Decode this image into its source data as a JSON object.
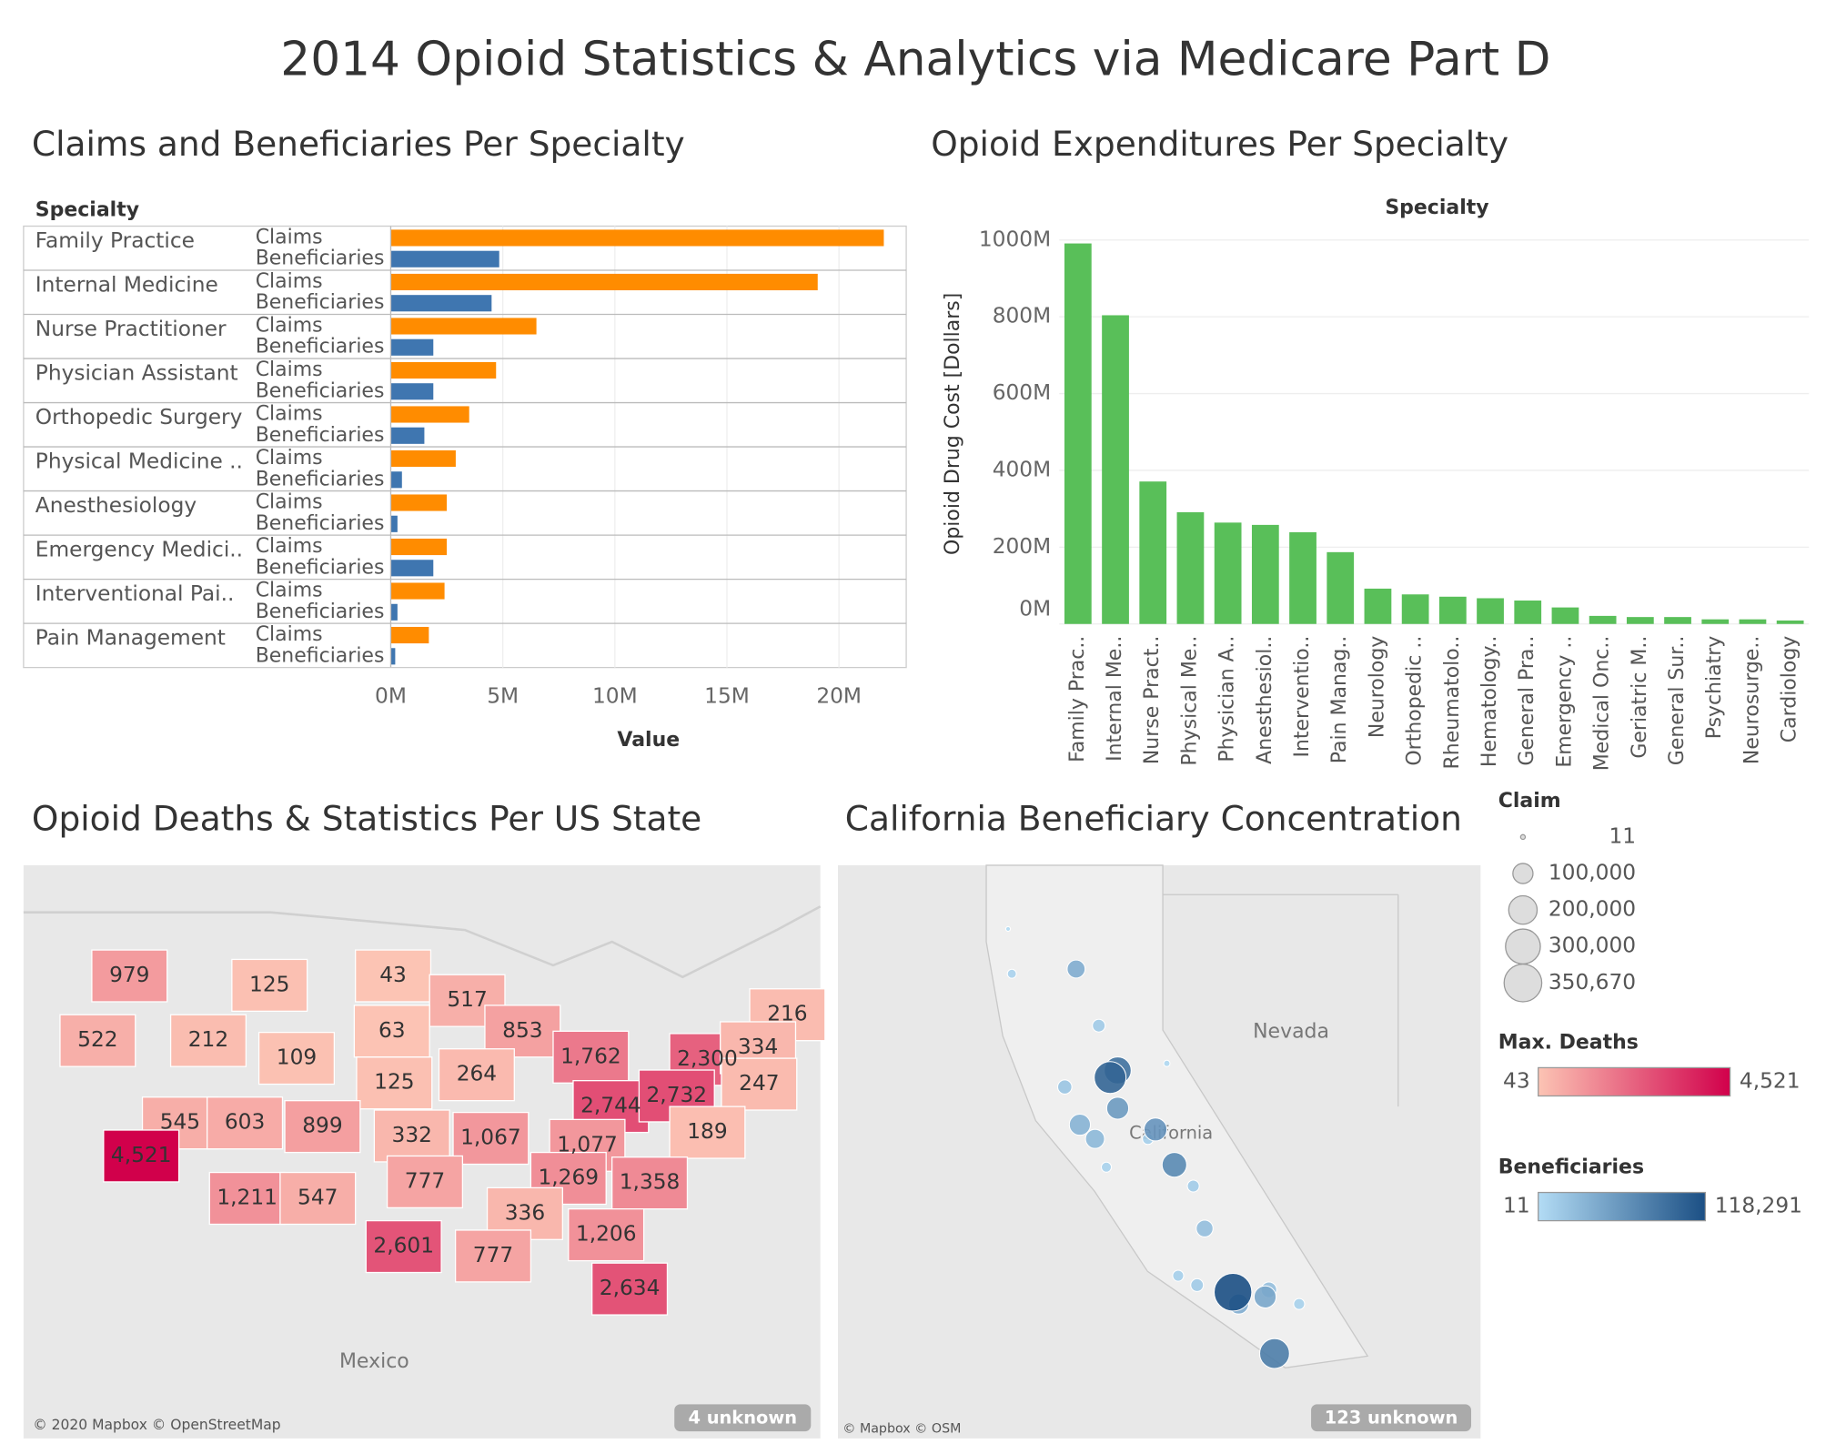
{
  "title": "2014 Opioid Statistics & Analytics via Medicare Part D",
  "chart_data": [
    {
      "type": "hbar_grouped",
      "title": "Claims and Beneficiaries Per Specialty",
      "row_header": "Specialty",
      "categories": [
        "Family Practice",
        "Internal Medicine",
        "Nurse Practitioner",
        "Physician Assistant",
        "Orthopedic Surgery",
        "Physical Medicine ..",
        "Anesthesiology",
        "Emergency Medici..",
        "Interventional Pai..",
        "Pain Management"
      ],
      "series": [
        {
          "name": "Claims",
          "color": "#ff8c00",
          "values": [
            22000000,
            19050000,
            6500000,
            4700000,
            3500000,
            2900000,
            2500000,
            2500000,
            2400000,
            1700000
          ]
        },
        {
          "name": "Beneficiaries",
          "color": "#3f76b0",
          "values": [
            4840000,
            4500000,
            1900000,
            1900000,
            1500000,
            500000,
            300000,
            1900000,
            300000,
            200000
          ]
        }
      ],
      "x_label": "Value",
      "xlim": [
        0,
        23000000
      ],
      "xticks": [
        {
          "value": 0,
          "label": "0M"
        },
        {
          "value": 5000000,
          "label": "5M"
        },
        {
          "value": 10000000,
          "label": "10M"
        },
        {
          "value": 15000000,
          "label": "15M"
        },
        {
          "value": 20000000,
          "label": "20M"
        }
      ],
      "grid": true
    },
    {
      "type": "bar",
      "title": "Opioid Expenditures Per Specialty",
      "x_label": "Specialty",
      "y_label": "Opioid Drug Cost [Dollars]",
      "categories": [
        "Family Prac..",
        "Internal Me..",
        "Nurse Pract..",
        "Physical Me..",
        "Physician A..",
        "Anesthesiol..",
        "Interventio..",
        "Pain Manag..",
        "Neurology",
        "Orthopedic ..",
        "Rheumatolo..",
        "Hematology..",
        "General Pra..",
        "Emergency ..",
        "Medical Onc..",
        "Geriatric M..",
        "General Sur..",
        "Psychiatry",
        "Neurosurge..",
        "Cardiology"
      ],
      "values": [
        991000000,
        804000000,
        371000000,
        291000000,
        264000000,
        258000000,
        239000000,
        187000000,
        92000000,
        77000000,
        71000000,
        67000000,
        61000000,
        43000000,
        21000000,
        18000000,
        18000000,
        12000000,
        12000000,
        9000000
      ],
      "color": "#59bf59",
      "ylim": [
        0,
        1030000000
      ],
      "yticks": [
        {
          "value": 0,
          "label": "0M"
        },
        {
          "value": 200000000,
          "label": "200M"
        },
        {
          "value": 400000000,
          "label": "400M"
        },
        {
          "value": 600000000,
          "label": "600M"
        },
        {
          "value": 800000000,
          "label": "800M"
        },
        {
          "value": 1000000000,
          "label": "1000M"
        }
      ],
      "grid": true
    },
    {
      "type": "choropleth",
      "title": "Opioid Deaths & Statistics Per US State",
      "values": [
        979,
        125,
        43,
        517,
        216,
        522,
        212,
        63,
        853,
        1762,
        2300,
        334,
        109,
        125,
        264,
        247,
        2744,
        2732,
        545,
        603,
        899,
        332,
        1067,
        1077,
        189,
        4521,
        777,
        1269,
        1358,
        1211,
        547,
        336,
        2601,
        1206,
        777,
        2634
      ],
      "value_labels": [
        "979",
        "125",
        "43",
        "517",
        "216",
        "522",
        "212",
        "63",
        "853",
        "1,762",
        "2,300",
        "334",
        "109",
        "125",
        "264",
        "247",
        "2,744",
        "2,732",
        "545",
        "603",
        "899",
        "332",
        "1,067",
        "1,077",
        "189",
        "4,521",
        "777",
        "1,269",
        "1,358",
        "1,211",
        "547",
        "336",
        "2,601",
        "1,206",
        "777",
        "2,634"
      ],
      "color_label": "Max. Deaths",
      "colors": [
        "#fcc4b4",
        "#d1004b"
      ],
      "clim": [
        43,
        4521
      ],
      "cticks": [
        43,
        {
          "value": 4521,
          "label": "4,521"
        }
      ],
      "annotations": [
        "Mexico",
        "© 2020 Mapbox © OpenStreetMap",
        "4 unknown"
      ]
    },
    {
      "type": "bubble_map",
      "title": "California Beneficiary Concentration",
      "x": [
        -118.25,
        -121.5,
        -117.15,
        -119.8,
        -120.3,
        -121.3,
        -122.4,
        -122.3,
        -121.9,
        -117.4,
        -118.1,
        -119.0,
        -119.7,
        -124.1,
        -121.8,
        -122.7,
        -121.6,
        -116.5,
        -117.3,
        -119.3,
        -121.3,
        -119.2,
        -120.5,
        -120.0,
        -124.2
      ],
      "y": [
        34.05,
        38.6,
        32.75,
        36.75,
        37.5,
        37.95,
        40.9,
        37.6,
        37.3,
        33.95,
        33.8,
        35.4,
        34.4,
        40.8,
        39.7,
        38.4,
        36.7,
        33.8,
        34.1,
        36.3,
        38.75,
        34.2,
        37.3,
        38.9,
        41.75
      ],
      "size_values": [
        350670,
        250000,
        220000,
        150000,
        130000,
        120000,
        80000,
        110000,
        90000,
        120000,
        100000,
        70000,
        30000,
        20000,
        40000,
        50000,
        25000,
        30000,
        60000,
        35000,
        180000,
        40000,
        30000,
        10000,
        5000
      ],
      "color_values": [
        118291,
        100000,
        80000,
        70000,
        60000,
        55000,
        40000,
        35000,
        30000,
        45000,
        40000,
        25000,
        12000,
        8000,
        15000,
        20000,
        9000,
        10000,
        25000,
        14000,
        90000,
        15000,
        12000,
        4000,
        2000
      ],
      "xlim": [
        -128.7,
        -111.7
      ],
      "ylim": [
        30.95,
        43.1
      ],
      "size_label": "Claim",
      "size_ticks": [
        11,
        {
          "value": 100000,
          "label": "100,000"
        },
        {
          "value": 200000,
          "label": "200,000"
        },
        {
          "value": 300000,
          "label": "300,000"
        },
        {
          "value": 350670,
          "label": "350,670"
        }
      ],
      "color_label": "Beneficiaries",
      "colors": [
        "#b3dcf5",
        "#1b4f84"
      ],
      "clim": [
        11,
        118291
      ],
      "cticks": [
        11,
        {
          "value": 118291,
          "label": "118,291"
        }
      ],
      "annotations": [
        "Nevada",
        "California",
        "© Mapbox © OSM",
        "123 unknown"
      ]
    }
  ]
}
